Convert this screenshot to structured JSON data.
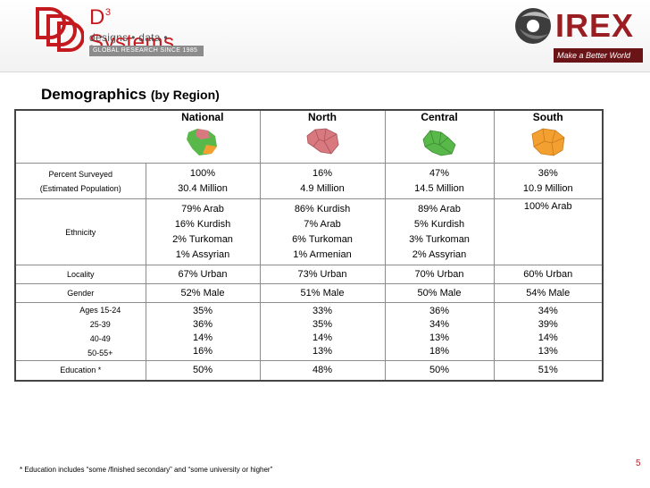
{
  "header": {
    "d3_brand": "D",
    "d3_sup": "3",
    "d3_brand_rest": " Systems",
    "d3_tagline": "designs • data • decisions",
    "d3_bar_text": "GLOBAL RESEARCH SINCE 1985",
    "irex_name": "IREX",
    "irex_tagline": "Make a Better World"
  },
  "title": {
    "main": "Demographics",
    "sub": "(by Region)"
  },
  "table": {
    "columns": [
      "National",
      "North",
      "Central",
      "South"
    ],
    "percent_label": "Percent Surveyed",
    "population_label": "(Estimated Population)",
    "percent": [
      "100%",
      "16%",
      "47%",
      "36%"
    ],
    "population": [
      "30.4 Million",
      "4.9 Million",
      "14.5 Million",
      "10.9 Million"
    ],
    "ethnicity_label": "Ethnicity",
    "ethnicity": [
      [
        "79% Arab",
        "16% Kurdish",
        "2% Turkoman",
        "1% Assyrian"
      ],
      [
        "86% Kurdish",
        "7% Arab",
        "6% Turkoman",
        "1% Armenian"
      ],
      [
        "89% Arab",
        "5% Kurdish",
        "3% Turkoman",
        "2% Assyrian"
      ],
      [
        "100% Arab",
        "",
        "",
        ""
      ]
    ],
    "locality_label": "Locality",
    "locality": [
      "67% Urban",
      "73% Urban",
      "70% Urban",
      "60% Urban"
    ],
    "gender_label": "Gender",
    "gender": [
      "52% Male",
      "51% Male",
      "50% Male",
      "54% Male"
    ],
    "age_labels": [
      "Ages 15-24",
      "25-39",
      "40-49",
      "50-55+"
    ],
    "ages": [
      [
        "35%",
        "36%",
        "14%",
        "16%"
      ],
      [
        "33%",
        "35%",
        "14%",
        "13%"
      ],
      [
        "36%",
        "34%",
        "13%",
        "18%"
      ],
      [
        "34%",
        "39%",
        "14%",
        "13%"
      ]
    ],
    "education_label": "Education *",
    "education": [
      "50%",
      "48%",
      "50%",
      "51%"
    ]
  },
  "footnote": "*   Education includes “some /finished secondary” and “some university or higher”",
  "page_number": "5",
  "colors": {
    "brand_red": "#c41a1f",
    "irex_red": "#9a1d22",
    "map_green": "#58b94a",
    "map_pink": "#d8797f",
    "map_orange": "#f3a030"
  }
}
